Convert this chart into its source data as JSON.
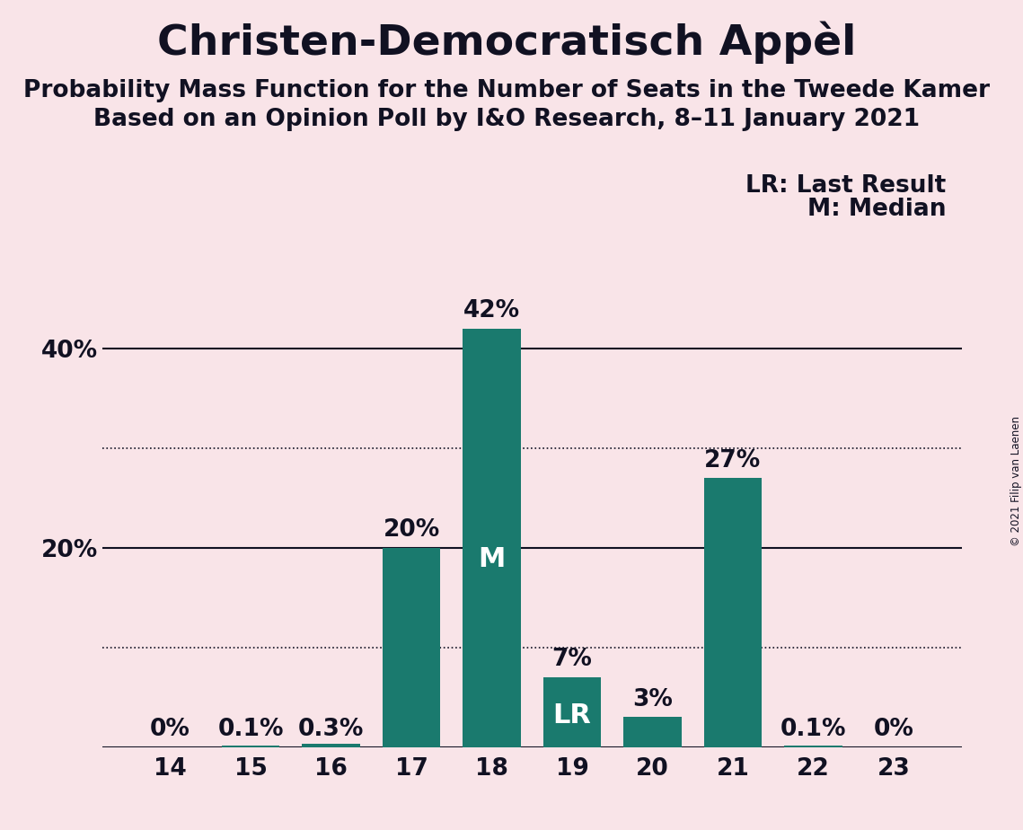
{
  "title": "Christen-Democratisch Appèl",
  "subtitle1": "Probability Mass Function for the Number of Seats in the Tweede Kamer",
  "subtitle2": "Based on an Opinion Poll by I&O Research, 8–11 January 2021",
  "copyright": "© 2021 Filip van Laenen",
  "categories": [
    14,
    15,
    16,
    17,
    18,
    19,
    20,
    21,
    22,
    23
  ],
  "values": [
    0.001,
    0.1,
    0.3,
    20.0,
    42.0,
    7.0,
    3.0,
    27.0,
    0.1,
    0.001
  ],
  "labels": [
    "0%",
    "0.1%",
    "0.3%",
    "20%",
    "42%",
    "7%",
    "3%",
    "27%",
    "0.1%",
    "0%"
  ],
  "bar_color": "#1a7a6e",
  "background_color": "#f9e4e8",
  "text_color": "#111122",
  "median_seat": 18,
  "lr_seat": 19,
  "solid_lines": [
    20,
    40
  ],
  "dotted_lines": [
    10,
    30
  ],
  "ytick_positions": [
    20,
    40
  ],
  "ytick_labels": [
    "20%",
    "40%"
  ],
  "ylim": [
    0,
    50
  ],
  "legend_text1": "LR: Last Result",
  "legend_text2": "M: Median",
  "title_fontsize": 34,
  "subtitle_fontsize": 19,
  "label_fontsize": 19,
  "tick_fontsize": 19,
  "bar_width": 0.72,
  "inside_marker_fontsize": 22
}
